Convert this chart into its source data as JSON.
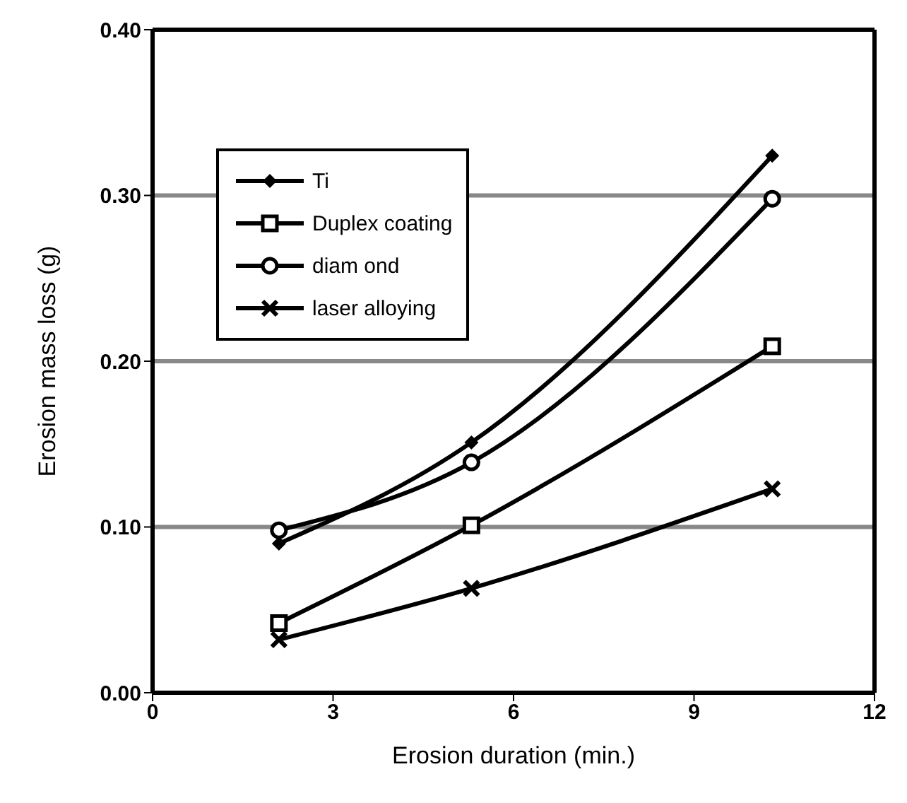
{
  "chart_data": {
    "type": "line",
    "xlabel": "Erosion duration (min.)",
    "ylabel": "Erosion mass loss (g)",
    "x": [
      2.1,
      5.3,
      10.3
    ],
    "series": [
      {
        "name": "Ti",
        "color": "#000000",
        "marker": "diamond",
        "values": [
          0.09,
          0.151,
          0.324
        ]
      },
      {
        "name": "Duplex coating",
        "color": "#000000",
        "marker": "square",
        "values": [
          0.042,
          0.101,
          0.209
        ]
      },
      {
        "name": "diam ond",
        "color": "#000000",
        "marker": "circle",
        "values": [
          0.098,
          0.139,
          0.298
        ]
      },
      {
        "name": "laser alloying",
        "color": "#000000",
        "marker": "cross",
        "values": [
          0.032,
          0.063,
          0.123
        ]
      }
    ],
    "xlim": [
      0,
      12
    ],
    "xticks": [
      0,
      3,
      6,
      9,
      12
    ],
    "ylim": [
      0,
      0.4
    ],
    "yticks": [
      {
        "value": 0,
        "label": "0.00"
      },
      {
        "value": 0.1,
        "label": "0.10"
      },
      {
        "value": 0.2,
        "label": "0.20"
      },
      {
        "value": 0.3,
        "label": "0.30"
      },
      {
        "value": 0.4,
        "label": "0.40"
      }
    ],
    "grid": "y",
    "legend": "top left",
    "line_style": "solid"
  }
}
